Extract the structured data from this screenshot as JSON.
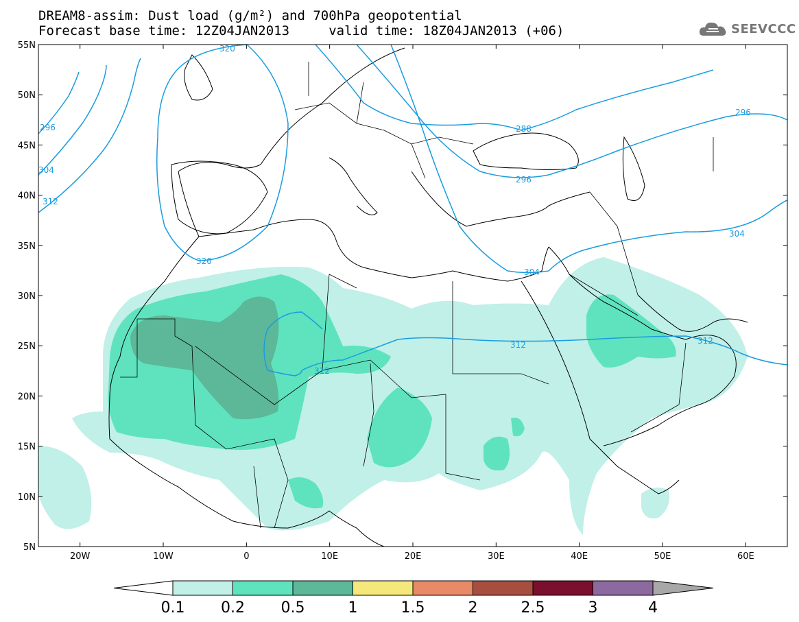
{
  "title": {
    "line1": "DREAM8-assim: Dust load (g/m²) and 700hPa geopotential",
    "line2": "Forecast base time: 12Z04JAN2013     valid time: 18Z04JAN2013 (+06)"
  },
  "logo": {
    "text": "SEEVCCC",
    "icon": "cloud-icon",
    "color": "#777777"
  },
  "map": {
    "lon_range": [
      -25,
      65
    ],
    "lat_range": [
      5,
      55
    ],
    "x_ticks": [
      "20W",
      "10W",
      "0",
      "10E",
      "20E",
      "30E",
      "40E",
      "50E",
      "60E"
    ],
    "y_ticks": [
      "55N",
      "50N",
      "45N",
      "40N",
      "35N",
      "30N",
      "25N",
      "20N",
      "15N",
      "10N",
      "5N"
    ],
    "contour_color": "#1a9ce0",
    "contour_labels": [
      "320",
      "296",
      "304",
      "312",
      "320",
      "288",
      "296",
      "296",
      "304",
      "304",
      "312",
      "312",
      "312"
    ]
  },
  "colorbar": {
    "labels": [
      "0.1",
      "0.2",
      "0.5",
      "1",
      "1.5",
      "2",
      "2.5",
      "3",
      "4"
    ],
    "colors": [
      "#c0f0e8",
      "#5ee3be",
      "#5cb898",
      "#f5e87a",
      "#e88a66",
      "#a74e3e",
      "#7a0f2e",
      "#8c6aa0"
    ],
    "under_color": "#ffffff",
    "over_color": "#a8a8a8"
  },
  "dust_colors": {
    "low": "#c0f0e8",
    "mid": "#5ee3be",
    "high": "#5cb898"
  }
}
